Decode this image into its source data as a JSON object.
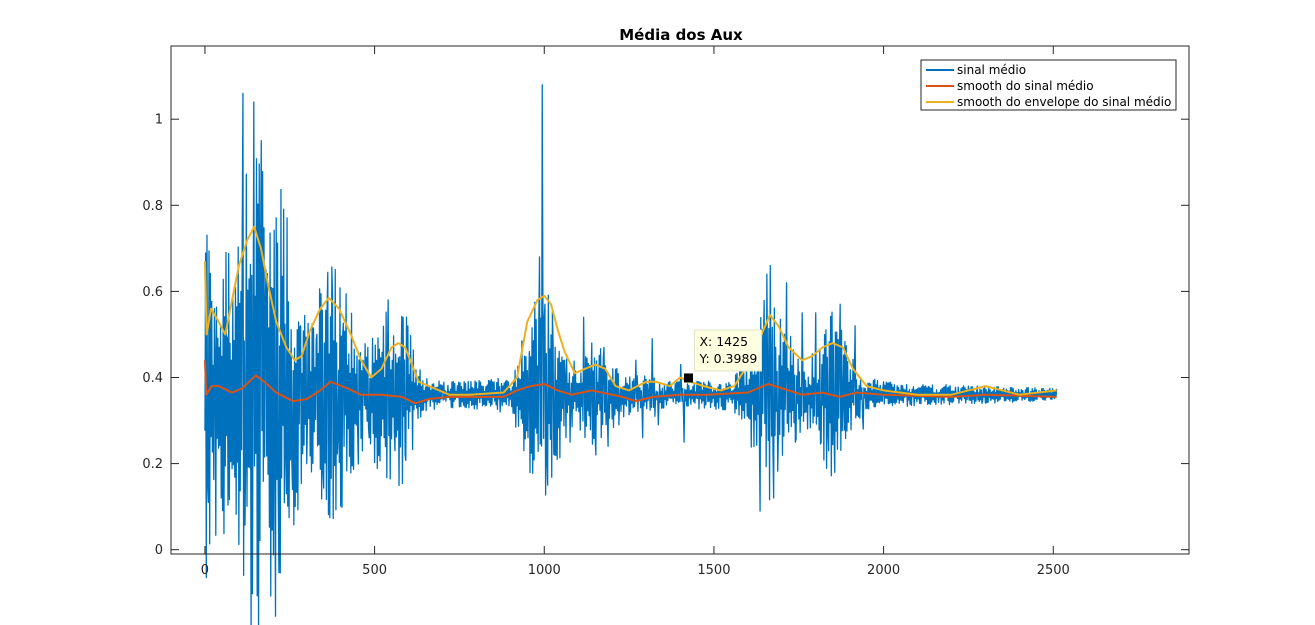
{
  "chart_data": {
    "type": "line",
    "title": "Média dos Aux",
    "xlabel": "",
    "ylabel": "",
    "xlim": [
      -100,
      2900
    ],
    "ylim": [
      -0.01,
      1.17
    ],
    "x_ticks": [
      0,
      500,
      1000,
      1500,
      2000,
      2500
    ],
    "y_ticks": [
      0,
      0.2,
      0.4,
      0.6,
      0.8,
      1
    ],
    "y_tick_labels": [
      "0",
      "0.2",
      "0.4",
      "0.6",
      "0.8",
      "1"
    ],
    "grid": false,
    "legend_position": "top-right",
    "series": [
      {
        "name": "sinal médio",
        "color": "#0072BD",
        "x_start": 0,
        "x_end": 2510,
        "baseline": 0.36,
        "envelope": [
          [
            0,
            0.46
          ],
          [
            30,
            0.34
          ],
          [
            80,
            0.34
          ],
          [
            110,
            0.52
          ],
          [
            150,
            0.6
          ],
          [
            180,
            0.48
          ],
          [
            210,
            0.52
          ],
          [
            240,
            0.44
          ],
          [
            290,
            0.2
          ],
          [
            330,
            0.26
          ],
          [
            370,
            0.32
          ],
          [
            400,
            0.28
          ],
          [
            440,
            0.18
          ],
          [
            480,
            0.12
          ],
          [
            520,
            0.2
          ],
          [
            560,
            0.24
          ],
          [
            600,
            0.18
          ],
          [
            640,
            0.04
          ],
          [
            700,
            0.03
          ],
          [
            900,
            0.04
          ],
          [
            930,
            0.12
          ],
          [
            970,
            0.22
          ],
          [
            1000,
            0.26
          ],
          [
            1030,
            0.2
          ],
          [
            1080,
            0.08
          ],
          [
            1150,
            0.12
          ],
          [
            1200,
            0.08
          ],
          [
            1250,
            0.05
          ],
          [
            1400,
            0.03
          ],
          [
            1560,
            0.04
          ],
          [
            1600,
            0.1
          ],
          [
            1640,
            0.22
          ],
          [
            1670,
            0.26
          ],
          [
            1700,
            0.18
          ],
          [
            1760,
            0.08
          ],
          [
            1800,
            0.1
          ],
          [
            1840,
            0.2
          ],
          [
            1880,
            0.16
          ],
          [
            1920,
            0.06
          ],
          [
            2000,
            0.03
          ],
          [
            2300,
            0.02
          ],
          [
            2510,
            0.015
          ]
        ],
        "spikes": [
          [
            10,
            0.11
          ],
          [
            28,
            0.56
          ],
          [
            112,
            1.06
          ],
          [
            120,
            0.2
          ],
          [
            143,
            1.04
          ],
          [
            165,
            0.95
          ],
          [
            180,
            0.65
          ],
          [
            205,
            0.22
          ],
          [
            215,
            0.14
          ],
          [
            240,
            0.13
          ],
          [
            258,
            0.14
          ],
          [
            282,
            0.52
          ],
          [
            300,
            0.2
          ],
          [
            330,
            0.5
          ],
          [
            348,
            0.18
          ],
          [
            360,
            0.56
          ],
          [
            375,
            0.59
          ],
          [
            392,
            0.26
          ],
          [
            405,
            0.5
          ],
          [
            450,
            0.28
          ],
          [
            465,
            0.44
          ],
          [
            483,
            0.26
          ],
          [
            540,
            0.58
          ],
          [
            560,
            0.23
          ],
          [
            578,
            0.43
          ],
          [
            590,
            0.22
          ],
          [
            700,
            0.38
          ],
          [
            870,
            0.32
          ],
          [
            955,
            0.46
          ],
          [
            985,
            0.68
          ],
          [
            994,
            1.08
          ],
          [
            1002,
            0.57
          ],
          [
            1010,
            0.15
          ],
          [
            1025,
            0.48
          ],
          [
            1030,
            0.22
          ],
          [
            1060,
            0.44
          ],
          [
            1075,
            0.25
          ],
          [
            1115,
            0.54
          ],
          [
            1140,
            0.48
          ],
          [
            1152,
            0.22
          ],
          [
            1175,
            0.47
          ],
          [
            1187,
            0.24
          ],
          [
            1220,
            0.29
          ],
          [
            1270,
            0.44
          ],
          [
            1290,
            0.26
          ],
          [
            1307,
            0.36
          ],
          [
            1317,
            0.49
          ],
          [
            1325,
            0.31
          ],
          [
            1335,
            0.29
          ],
          [
            1350,
            0.33
          ],
          [
            1402,
            0.43
          ],
          [
            1412,
            0.25
          ],
          [
            1480,
            0.38
          ],
          [
            1635,
            0.09
          ],
          [
            1645,
            0.48
          ],
          [
            1655,
            0.64
          ],
          [
            1665,
            0.66
          ],
          [
            1675,
            0.12
          ],
          [
            1690,
            0.27
          ],
          [
            1714,
            0.62
          ],
          [
            1740,
            0.25
          ],
          [
            1760,
            0.55
          ],
          [
            1800,
            0.55
          ],
          [
            1815,
            0.25
          ],
          [
            1838,
            0.23
          ],
          [
            1855,
            0.18
          ],
          [
            1872,
            0.57
          ],
          [
            1880,
            0.34
          ],
          [
            1915,
            0.52
          ],
          [
            1940,
            0.28
          ],
          [
            2000,
            0.39
          ],
          [
            2250,
            0.38
          ],
          [
            2275,
            0.38
          ],
          [
            2290,
            0.34
          ]
        ]
      },
      {
        "name": "smooth do sinal médio",
        "color": "#D95319",
        "points": [
          [
            0,
            0.44
          ],
          [
            4,
            0.36
          ],
          [
            20,
            0.38
          ],
          [
            40,
            0.38
          ],
          [
            80,
            0.365
          ],
          [
            110,
            0.375
          ],
          [
            150,
            0.405
          ],
          [
            175,
            0.39
          ],
          [
            210,
            0.365
          ],
          [
            260,
            0.345
          ],
          [
            300,
            0.35
          ],
          [
            340,
            0.37
          ],
          [
            370,
            0.39
          ],
          [
            420,
            0.375
          ],
          [
            460,
            0.36
          ],
          [
            520,
            0.36
          ],
          [
            580,
            0.355
          ],
          [
            620,
            0.34
          ],
          [
            660,
            0.35
          ],
          [
            720,
            0.355
          ],
          [
            880,
            0.355
          ],
          [
            920,
            0.37
          ],
          [
            960,
            0.38
          ],
          [
            1000,
            0.385
          ],
          [
            1040,
            0.37
          ],
          [
            1080,
            0.36
          ],
          [
            1140,
            0.37
          ],
          [
            1170,
            0.365
          ],
          [
            1230,
            0.355
          ],
          [
            1270,
            0.345
          ],
          [
            1320,
            0.355
          ],
          [
            1400,
            0.36
          ],
          [
            1480,
            0.36
          ],
          [
            1600,
            0.365
          ],
          [
            1660,
            0.385
          ],
          [
            1700,
            0.375
          ],
          [
            1760,
            0.36
          ],
          [
            1820,
            0.365
          ],
          [
            1870,
            0.355
          ],
          [
            1920,
            0.365
          ],
          [
            2000,
            0.36
          ],
          [
            2200,
            0.355
          ],
          [
            2300,
            0.36
          ],
          [
            2510,
            0.355
          ]
        ]
      },
      {
        "name": "smooth do envelope do sinal médio",
        "color": "#EDB120",
        "points": [
          [
            0,
            0.67
          ],
          [
            5,
            0.5
          ],
          [
            18,
            0.56
          ],
          [
            40,
            0.53
          ],
          [
            60,
            0.5
          ],
          [
            80,
            0.58
          ],
          [
            100,
            0.66
          ],
          [
            125,
            0.72
          ],
          [
            145,
            0.75
          ],
          [
            165,
            0.7
          ],
          [
            185,
            0.62
          ],
          [
            210,
            0.53
          ],
          [
            240,
            0.47
          ],
          [
            265,
            0.44
          ],
          [
            285,
            0.45
          ],
          [
            310,
            0.51
          ],
          [
            340,
            0.56
          ],
          [
            365,
            0.585
          ],
          [
            395,
            0.56
          ],
          [
            430,
            0.5
          ],
          [
            460,
            0.44
          ],
          [
            490,
            0.4
          ],
          [
            520,
            0.42
          ],
          [
            550,
            0.47
          ],
          [
            570,
            0.48
          ],
          [
            590,
            0.47
          ],
          [
            610,
            0.43
          ],
          [
            630,
            0.39
          ],
          [
            660,
            0.38
          ],
          [
            720,
            0.36
          ],
          [
            780,
            0.36
          ],
          [
            880,
            0.365
          ],
          [
            920,
            0.4
          ],
          [
            950,
            0.53
          ],
          [
            980,
            0.58
          ],
          [
            1000,
            0.59
          ],
          [
            1020,
            0.57
          ],
          [
            1040,
            0.51
          ],
          [
            1060,
            0.46
          ],
          [
            1090,
            0.41
          ],
          [
            1120,
            0.42
          ],
          [
            1150,
            0.43
          ],
          [
            1180,
            0.42
          ],
          [
            1210,
            0.38
          ],
          [
            1250,
            0.37
          ],
          [
            1300,
            0.39
          ],
          [
            1330,
            0.39
          ],
          [
            1370,
            0.38
          ],
          [
            1400,
            0.4
          ],
          [
            1430,
            0.39
          ],
          [
            1470,
            0.38
          ],
          [
            1520,
            0.37
          ],
          [
            1560,
            0.38
          ],
          [
            1600,
            0.43
          ],
          [
            1640,
            0.5
          ],
          [
            1665,
            0.545
          ],
          [
            1690,
            0.52
          ],
          [
            1720,
            0.47
          ],
          [
            1760,
            0.44
          ],
          [
            1790,
            0.45
          ],
          [
            1820,
            0.47
          ],
          [
            1850,
            0.48
          ],
          [
            1880,
            0.47
          ],
          [
            1910,
            0.42
          ],
          [
            1950,
            0.38
          ],
          [
            2000,
            0.37
          ],
          [
            2100,
            0.36
          ],
          [
            2200,
            0.36
          ],
          [
            2300,
            0.38
          ],
          [
            2400,
            0.36
          ],
          [
            2510,
            0.37
          ]
        ]
      }
    ],
    "annotations": [
      {
        "type": "datatip",
        "x": 1425,
        "y": 0.3989,
        "x_text": "X: 1425",
        "y_text": "Y: 0.3989"
      }
    ]
  }
}
